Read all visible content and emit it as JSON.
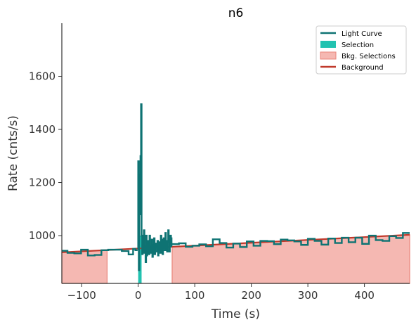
{
  "chart_data": {
    "type": "line",
    "title": "n6",
    "xlabel": "Time (s)",
    "ylabel": "Rate (cnts/s)",
    "xlim": [
      -135,
      480
    ],
    "ylim": [
      820,
      1800
    ],
    "x_ticks": [
      -100,
      0,
      100,
      200,
      300,
      400
    ],
    "x_tick_labels": [
      "−100",
      "0",
      "100",
      "200",
      "300",
      "400"
    ],
    "y_ticks": [
      1000,
      1200,
      1400,
      1600
    ],
    "y_tick_labels": [
      "1000",
      "1200",
      "1400",
      "1600"
    ],
    "grid": false,
    "legend_position": "top-right",
    "legend": [
      {
        "label": "Light Curve",
        "kind": "line",
        "color": "#0e7373"
      },
      {
        "label": "Selection",
        "kind": "patch",
        "color": "#22c2b0"
      },
      {
        "label": "Bkg. Selections",
        "kind": "patch",
        "color": "#f5b8b2"
      },
      {
        "label": "Background",
        "kind": "line",
        "color": "#c0392b"
      }
    ],
    "selection": {
      "x": [
        0,
        6
      ]
    },
    "bkg_selections": [
      {
        "x": [
          -135,
          -55
        ]
      },
      {
        "x": [
          60,
          480
        ]
      }
    ],
    "background": {
      "x": [
        -135,
        480
      ],
      "y": [
        937,
        1003
      ]
    },
    "light_curve_coarse": {
      "x": [
        -135,
        -125,
        -113,
        -101,
        -89,
        -77,
        -65,
        -53,
        -41,
        -29,
        -17,
        -9,
        -5,
        -1,
        60,
        72,
        84,
        96,
        108,
        120,
        132,
        144,
        156,
        168,
        180,
        192,
        204,
        216,
        228,
        240,
        252,
        264,
        276,
        288,
        300,
        312,
        324,
        336,
        348,
        360,
        372,
        384,
        396,
        408,
        420,
        432,
        444,
        456,
        468,
        480
      ],
      "y": [
        943,
        935,
        933,
        947,
        925,
        927,
        945,
        947,
        947,
        942,
        929,
        950,
        945,
        948,
        968,
        971,
        958,
        962,
        967,
        960,
        986,
        972,
        955,
        970,
        957,
        978,
        962,
        980,
        979,
        968,
        985,
        982,
        978,
        965,
        988,
        980,
        966,
        989,
        972,
        992,
        975,
        992,
        969,
        1000,
        983,
        980,
        998,
        991,
        1010,
        1008
      ]
    },
    "light_curve_fine": {
      "x": [
        -1,
        0,
        1,
        2,
        3,
        4,
        5,
        6,
        7,
        8,
        9,
        10,
        11,
        12,
        13,
        14,
        15,
        16,
        17,
        18,
        19,
        20,
        21,
        22,
        23,
        24,
        25,
        26,
        27,
        28,
        29,
        30,
        31,
        32,
        33,
        34,
        35,
        36,
        37,
        38,
        39,
        40,
        41,
        42,
        43,
        44,
        45,
        46,
        47,
        48,
        49,
        50,
        51,
        52,
        53,
        54,
        55,
        56,
        57,
        58,
        59,
        60
      ],
      "y": [
        950,
        1280,
        870,
        1230,
        1080,
        1300,
        1495,
        1000,
        930,
        990,
        940,
        1020,
        935,
        960,
        900,
        1000,
        925,
        975,
        950,
        980,
        930,
        1000,
        940,
        960,
        935,
        985,
        920,
        965,
        945,
        990,
        930,
        970,
        955,
        965,
        940,
        980,
        925,
        960,
        945,
        975,
        935,
        1000,
        950,
        985,
        930,
        965,
        990,
        955,
        945,
        1010,
        960,
        980,
        940,
        975,
        1020,
        985,
        940,
        970,
        1000,
        990,
        960,
        968
      ]
    }
  }
}
